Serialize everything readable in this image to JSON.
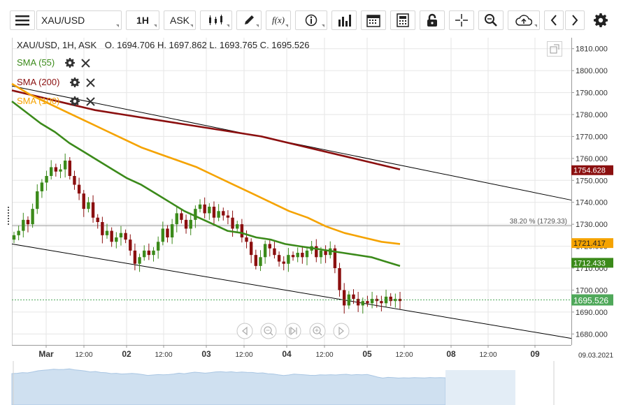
{
  "toolbar": {
    "symbol": "XAU/USD",
    "timeframe": "1H",
    "price_type": "ASK",
    "icons": [
      "menu-icon",
      "candlestick-icon",
      "draw-pencil-icon",
      "function-fx-icon",
      "info-icon",
      "volume-bars-icon",
      "calendar-icon",
      "calculator-icon",
      "lock-icon",
      "crosshair-icon",
      "zoom-icon",
      "cloud-upload-icon",
      "chevron-left-icon",
      "chevron-right-icon",
      "gear-icon"
    ],
    "fx_label": "f(x)"
  },
  "header": {
    "instrument": "XAU/USD, 1H, ASK",
    "ohlc": "O. 1694.706 H. 1697.862 L. 1693.765 C. 1695.526"
  },
  "legend": [
    {
      "label": "SMA (55)",
      "color": "#3b8a1a"
    },
    {
      "label": "SMA (200)",
      "color": "#8b0f0f"
    },
    {
      "label": "SMA (100)",
      "color": "#f5a300"
    }
  ],
  "colors": {
    "up": "#3b8a1a",
    "down": "#8b0f0f",
    "sma55": "#3b8a1a",
    "sma100": "#f5a300",
    "sma200": "#8b0f0f",
    "channel": "#000000",
    "grid": "#e6e6e6",
    "price_tag": "#4fa85a"
  },
  "chart_data": {
    "type": "candlestick",
    "symbol": "XAU/USD",
    "interval": "1H",
    "ylim": [
      1675,
      1815
    ],
    "y_ticks": [
      "1810.000",
      "1800.000",
      "1790.000",
      "1780.000",
      "1770.000",
      "1760.000",
      "1750.000",
      "1740.000",
      "1730.000",
      "1720.000",
      "1710.000",
      "1700.000",
      "1690.000",
      "1680.000"
    ],
    "x_ticks": [
      "Mar",
      "12:00",
      "02",
      "12:00",
      "03",
      "12:00",
      "04",
      "12:00",
      "05",
      "12:00",
      "08",
      "12:00",
      "09"
    ],
    "x_date_label": "09.03.2021",
    "price_labels": {
      "sma200": "1754.628",
      "sma100": "1721.417",
      "sma55": "1712.433",
      "last": "1695.526"
    },
    "fib_label": "38.20 % (1729.33)",
    "fib_value": 1729.33,
    "last_price": 1695.526,
    "closes": [
      1725,
      1727,
      1732,
      1730,
      1737,
      1745,
      1749,
      1752,
      1756,
      1754,
      1755,
      1759,
      1752,
      1748,
      1744,
      1737,
      1740,
      1733,
      1731,
      1725,
      1727,
      1722,
      1724,
      1726,
      1723,
      1718,
      1712,
      1715,
      1718,
      1716,
      1718,
      1722,
      1728,
      1724,
      1730,
      1735,
      1732,
      1728,
      1732,
      1737,
      1739,
      1735,
      1738,
      1733,
      1736,
      1734,
      1733,
      1728,
      1730,
      1724,
      1722,
      1716,
      1711,
      1715,
      1721,
      1719,
      1716,
      1713,
      1712,
      1716,
      1715,
      1717,
      1715,
      1718,
      1720,
      1715,
      1718,
      1716,
      1719,
      1710,
      1700,
      1693,
      1698,
      1696,
      1693,
      1695,
      1694,
      1696,
      1695,
      1694,
      1697,
      1695,
      1696,
      1695
    ],
    "sma55": [
      1786,
      1781,
      1776,
      1772,
      1767,
      1763,
      1759,
      1755,
      1751,
      1748,
      1744,
      1740,
      1736,
      1733,
      1730,
      1727,
      1726,
      1724,
      1723,
      1721,
      1720,
      1719,
      1718,
      1717,
      1716,
      1715,
      1713,
      1711
    ],
    "sma100": [
      1794,
      1789,
      1785,
      1781,
      1777,
      1773,
      1769,
      1765,
      1762,
      1759,
      1756,
      1752,
      1748,
      1744,
      1740,
      1736,
      1733,
      1729,
      1726,
      1724,
      1722,
      1721
    ],
    "sma200": [
      1791,
      1788,
      1785,
      1782,
      1780,
      1778,
      1776,
      1774,
      1772,
      1770,
      1767,
      1764,
      1761,
      1758,
      1755
    ],
    "channel_upper": [
      [
        0,
        1793
      ],
      [
        1,
        1741
      ]
    ],
    "channel_lower": [
      [
        0,
        1721
      ],
      [
        1,
        1678
      ]
    ]
  }
}
